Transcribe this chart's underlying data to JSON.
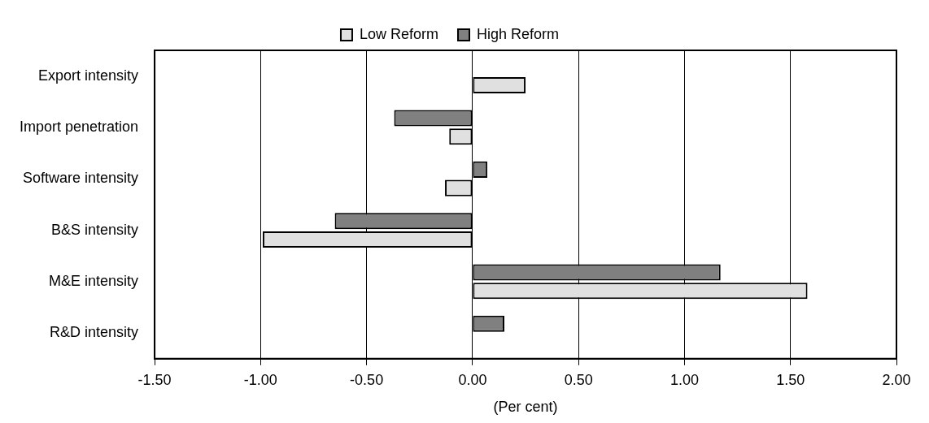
{
  "chart_data": {
    "type": "bar",
    "orientation": "horizontal",
    "categories": [
      "Export intensity",
      "Import penetration",
      "Software intensity",
      "B&S intensity",
      "M&E intensity",
      "R&D intensity"
    ],
    "series": [
      {
        "name": "Low Reform",
        "color": "#e0e0e0",
        "values": [
          0.25,
          -0.11,
          -0.13,
          -0.99,
          1.58,
          null
        ]
      },
      {
        "name": "High Reform",
        "color": "#808080",
        "values": [
          null,
          -0.37,
          0.07,
          -0.65,
          1.17,
          0.15
        ]
      }
    ],
    "xlabel": "(Per cent)",
    "xlim": [
      -1.5,
      2.0
    ],
    "xticks": [
      {
        "value": -1.5,
        "label": "-1.50"
      },
      {
        "value": -1.0,
        "label": "-1.00"
      },
      {
        "value": -0.5,
        "label": "-0.50"
      },
      {
        "value": 0,
        "label": "0.00"
      },
      {
        "value": 0.5,
        "label": "0.50"
      },
      {
        "value": 1.0,
        "label": "1.00"
      },
      {
        "value": 1.5,
        "label": "1.50"
      },
      {
        "value": 2.0,
        "label": "2.00"
      }
    ],
    "grid": "x",
    "legend": "top"
  }
}
